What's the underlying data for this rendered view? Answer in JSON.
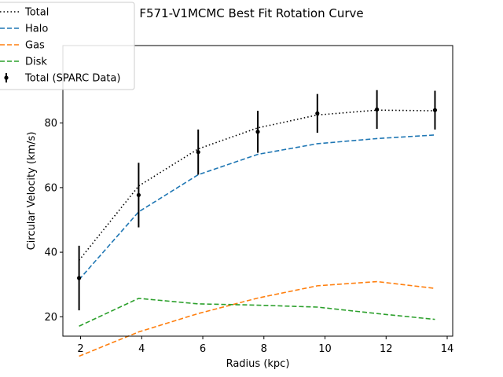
{
  "chart_data": {
    "type": "line",
    "title": "F571-V1MCMC Best Fit Rotation Curve",
    "xlabel": "Radius (kpc)",
    "ylabel": "Circular Velocity (km/s)",
    "xlim": [
      1.42,
      14.18
    ],
    "ylim": [
      14.0,
      104.0
    ],
    "xticks": [
      "2",
      "4",
      "6",
      "8",
      "10",
      "12",
      "14"
    ],
    "yticks": [
      "20",
      "40",
      "60",
      "80"
    ],
    "grid": false,
    "legend_position": "top-left",
    "x": [
      1.95,
      3.9,
      5.85,
      7.8,
      9.75,
      11.7,
      13.6
    ],
    "series": [
      {
        "name": "Total",
        "style": "dotted",
        "color": "#000000",
        "values": [
          37.5,
          60.5,
          72.0,
          78.5,
          82.5,
          84.0,
          83.8
        ]
      },
      {
        "name": "Halo",
        "style": "dashed",
        "color": "#1f77b4",
        "values": [
          31.5,
          52.5,
          64.0,
          70.3,
          73.6,
          75.2,
          76.3
        ]
      },
      {
        "name": "Gas",
        "style": "dashed",
        "color": "#ff7f0e",
        "values": [
          7.8,
          15.3,
          21.0,
          25.8,
          29.6,
          30.9,
          28.8
        ]
      },
      {
        "name": "Disk",
        "style": "dashed",
        "color": "#2ca02c",
        "values": [
          17.1,
          25.7,
          24.0,
          23.6,
          23.0,
          21.0,
          19.2
        ]
      }
    ],
    "errorbar_series": {
      "name": "Total (SPARC Data)",
      "color": "#000000",
      "values": [
        32.0,
        57.7,
        71.0,
        77.3,
        83.0,
        84.2,
        84.0
      ],
      "errors": [
        10.0,
        10.0,
        7.0,
        6.5,
        6.0,
        6.0,
        6.0
      ]
    }
  }
}
